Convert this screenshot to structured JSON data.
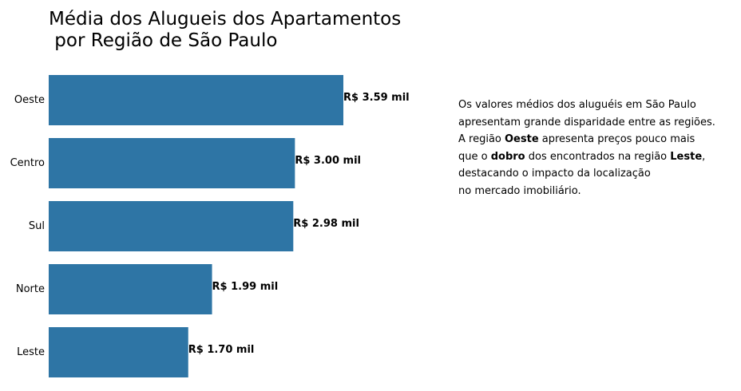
{
  "chart_data": {
    "type": "bar",
    "orientation": "horizontal",
    "title_lines": [
      "Média dos Alugueis dos Apartamentos",
      " por Região de São Paulo"
    ],
    "xlabel": "",
    "ylabel": "",
    "categories": [
      "Oeste",
      "Centro",
      "Sul",
      "Norte",
      "Leste"
    ],
    "values": [
      3.59,
      3.0,
      2.98,
      1.99,
      1.7
    ],
    "value_labels": [
      "R$ 3.59 mil",
      "R$ 3.00 mil",
      "R$ 2.98 mil",
      "R$ 1.99 mil",
      "R$ 1.70 mil"
    ],
    "xlim": [
      0,
      3.59
    ],
    "grid": false,
    "bar_color": "#2e75a5"
  },
  "annotation": {
    "lines": [
      [
        {
          "text": "Os valores médios dos aluguéis em São Paulo",
          "bold": false
        }
      ],
      [
        {
          "text": "apresentam grande disparidade entre as regiões.",
          "bold": false
        }
      ],
      [
        {
          "text": "A região ",
          "bold": false
        },
        {
          "text": "Oeste",
          "bold": true
        },
        {
          "text": " apresenta preços pouco mais",
          "bold": false
        }
      ],
      [
        {
          "text": "que o ",
          "bold": false
        },
        {
          "text": "dobro",
          "bold": true
        },
        {
          "text": " dos encontrados na região ",
          "bold": false
        },
        {
          "text": "Leste",
          "bold": true
        },
        {
          "text": ",",
          "bold": false
        }
      ],
      [
        {
          "text": "destacando o impacto da localização",
          "bold": false
        }
      ],
      [
        {
          "text": "no mercado imobiliário.",
          "bold": false
        }
      ]
    ]
  }
}
